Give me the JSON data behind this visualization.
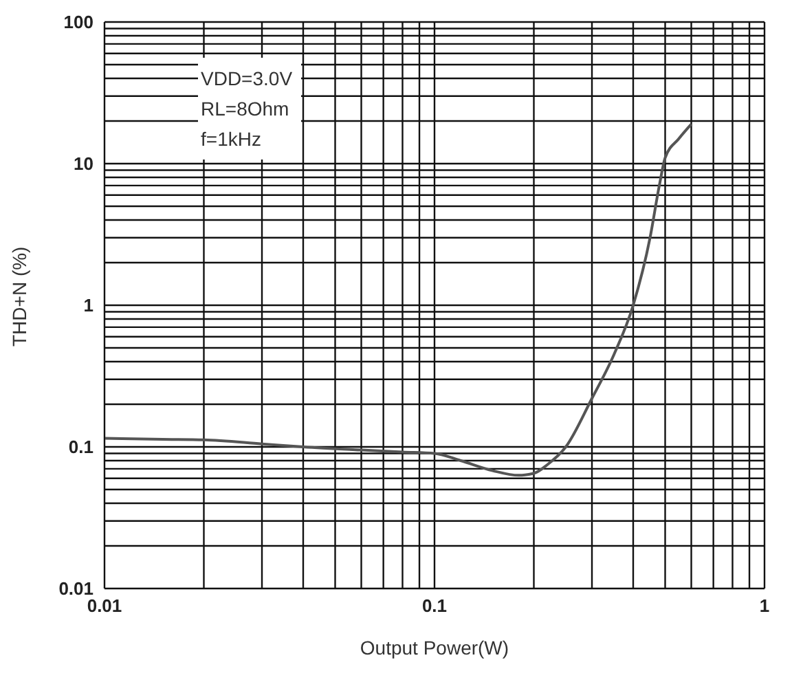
{
  "chart_data": {
    "type": "line",
    "xlabel": "Output Power(W)",
    "ylabel": "THD+N (%)",
    "annotations": [
      "VDD=3.0V",
      "RL=8Ohm",
      "f=1kHz"
    ],
    "log": "xy",
    "grid": true,
    "marker": "none",
    "line_style": "solid",
    "xlim": [
      0.01,
      1
    ],
    "xticks": [
      0.01,
      0.1,
      1
    ],
    "ylim": [
      0.01,
      100
    ],
    "yticks": [
      0.01,
      0.1,
      1,
      10,
      100
    ],
    "series": [
      {
        "color": "#555555",
        "x": [
          0.01,
          0.015,
          0.02,
          0.03,
          0.04,
          0.06,
          0.08,
          0.1,
          0.12,
          0.15,
          0.18,
          0.2,
          0.22,
          0.25,
          0.3,
          0.35,
          0.4,
          0.45,
          0.48,
          0.5,
          0.55,
          0.6
        ],
        "values": [
          0.115,
          0.113,
          0.112,
          0.105,
          0.1,
          0.095,
          0.092,
          0.09,
          0.08,
          0.068,
          0.063,
          0.065,
          0.075,
          0.1,
          0.22,
          0.45,
          1.0,
          3,
          7,
          11,
          15,
          19
        ]
      }
    ]
  }
}
